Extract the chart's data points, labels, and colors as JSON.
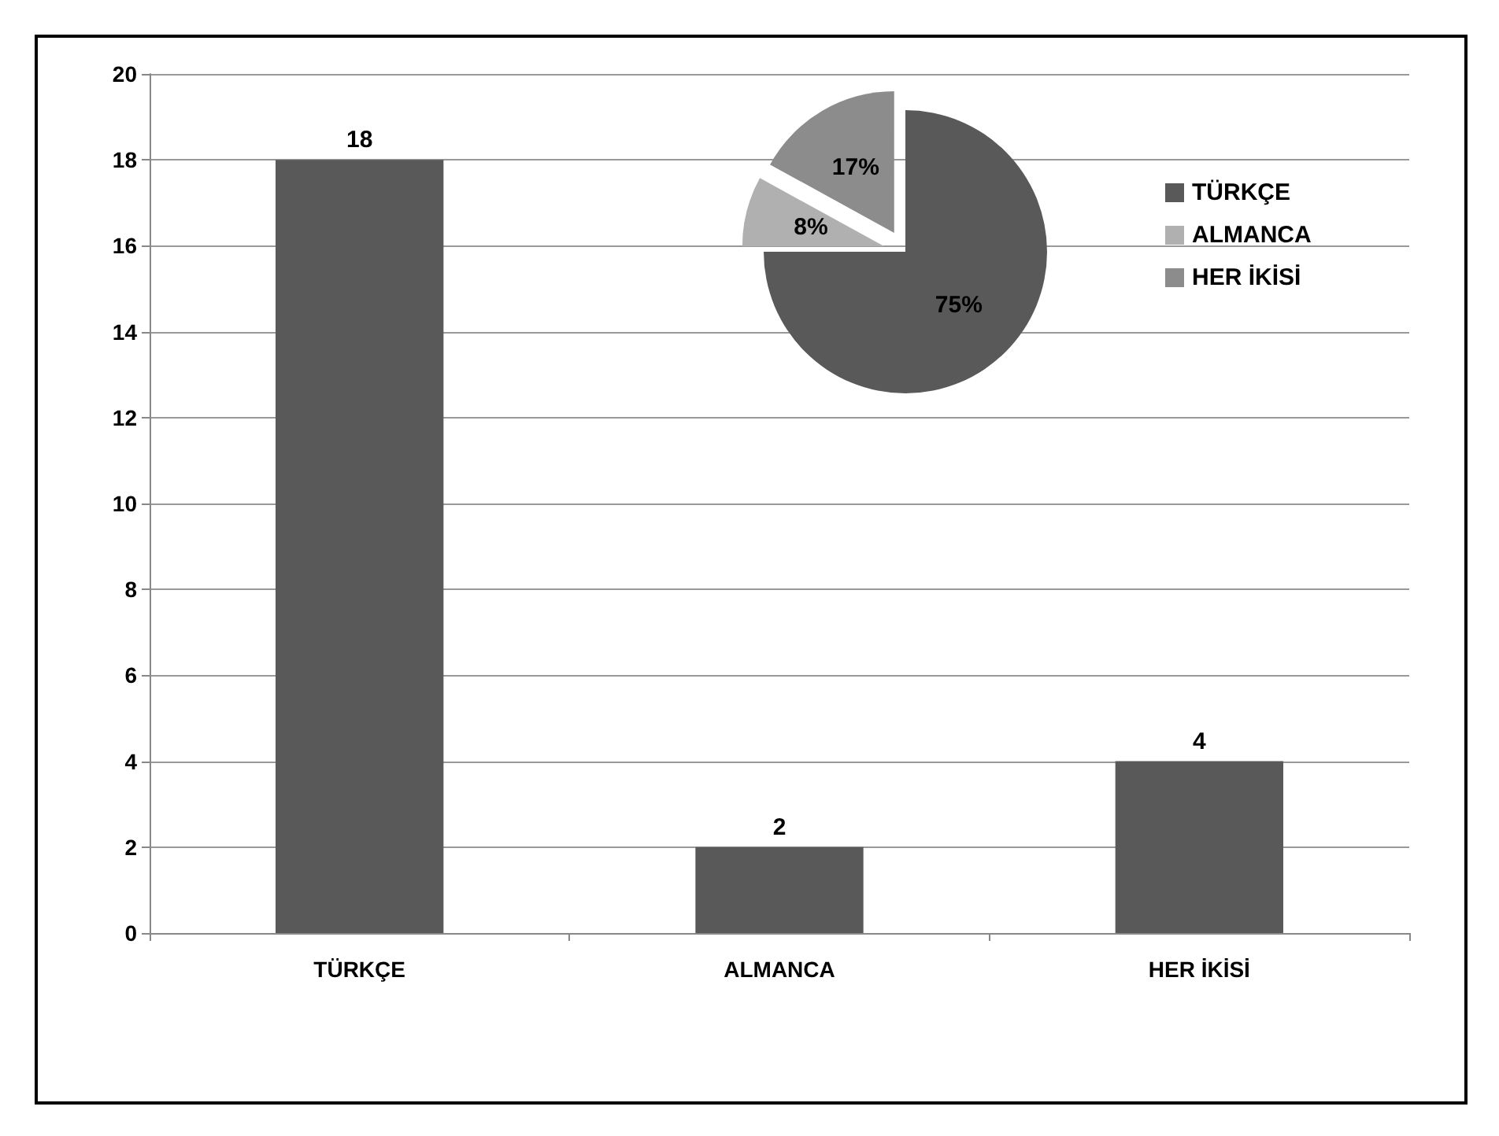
{
  "chart_data": [
    {
      "type": "bar",
      "categories": [
        "TÜRKÇE",
        "ALMANCA",
        "HER İKİSİ"
      ],
      "values": [
        18,
        2,
        4
      ],
      "color": "#595959",
      "ylim": [
        0,
        20
      ],
      "yticks": [
        0,
        2,
        4,
        6,
        8,
        10,
        12,
        14,
        16,
        18,
        20
      ],
      "grid": "y",
      "data_labels": true
    },
    {
      "type": "pie",
      "categories": [
        "TÜRKÇE",
        "ALMANCA",
        "HER İKİSİ"
      ],
      "values": [
        75,
        8,
        17
      ],
      "colors": [
        "#595959",
        "#b0b0b0",
        "#8c8c8c"
      ],
      "value_labels": [
        "75%",
        "8%",
        "17%"
      ],
      "legend": "right"
    }
  ]
}
